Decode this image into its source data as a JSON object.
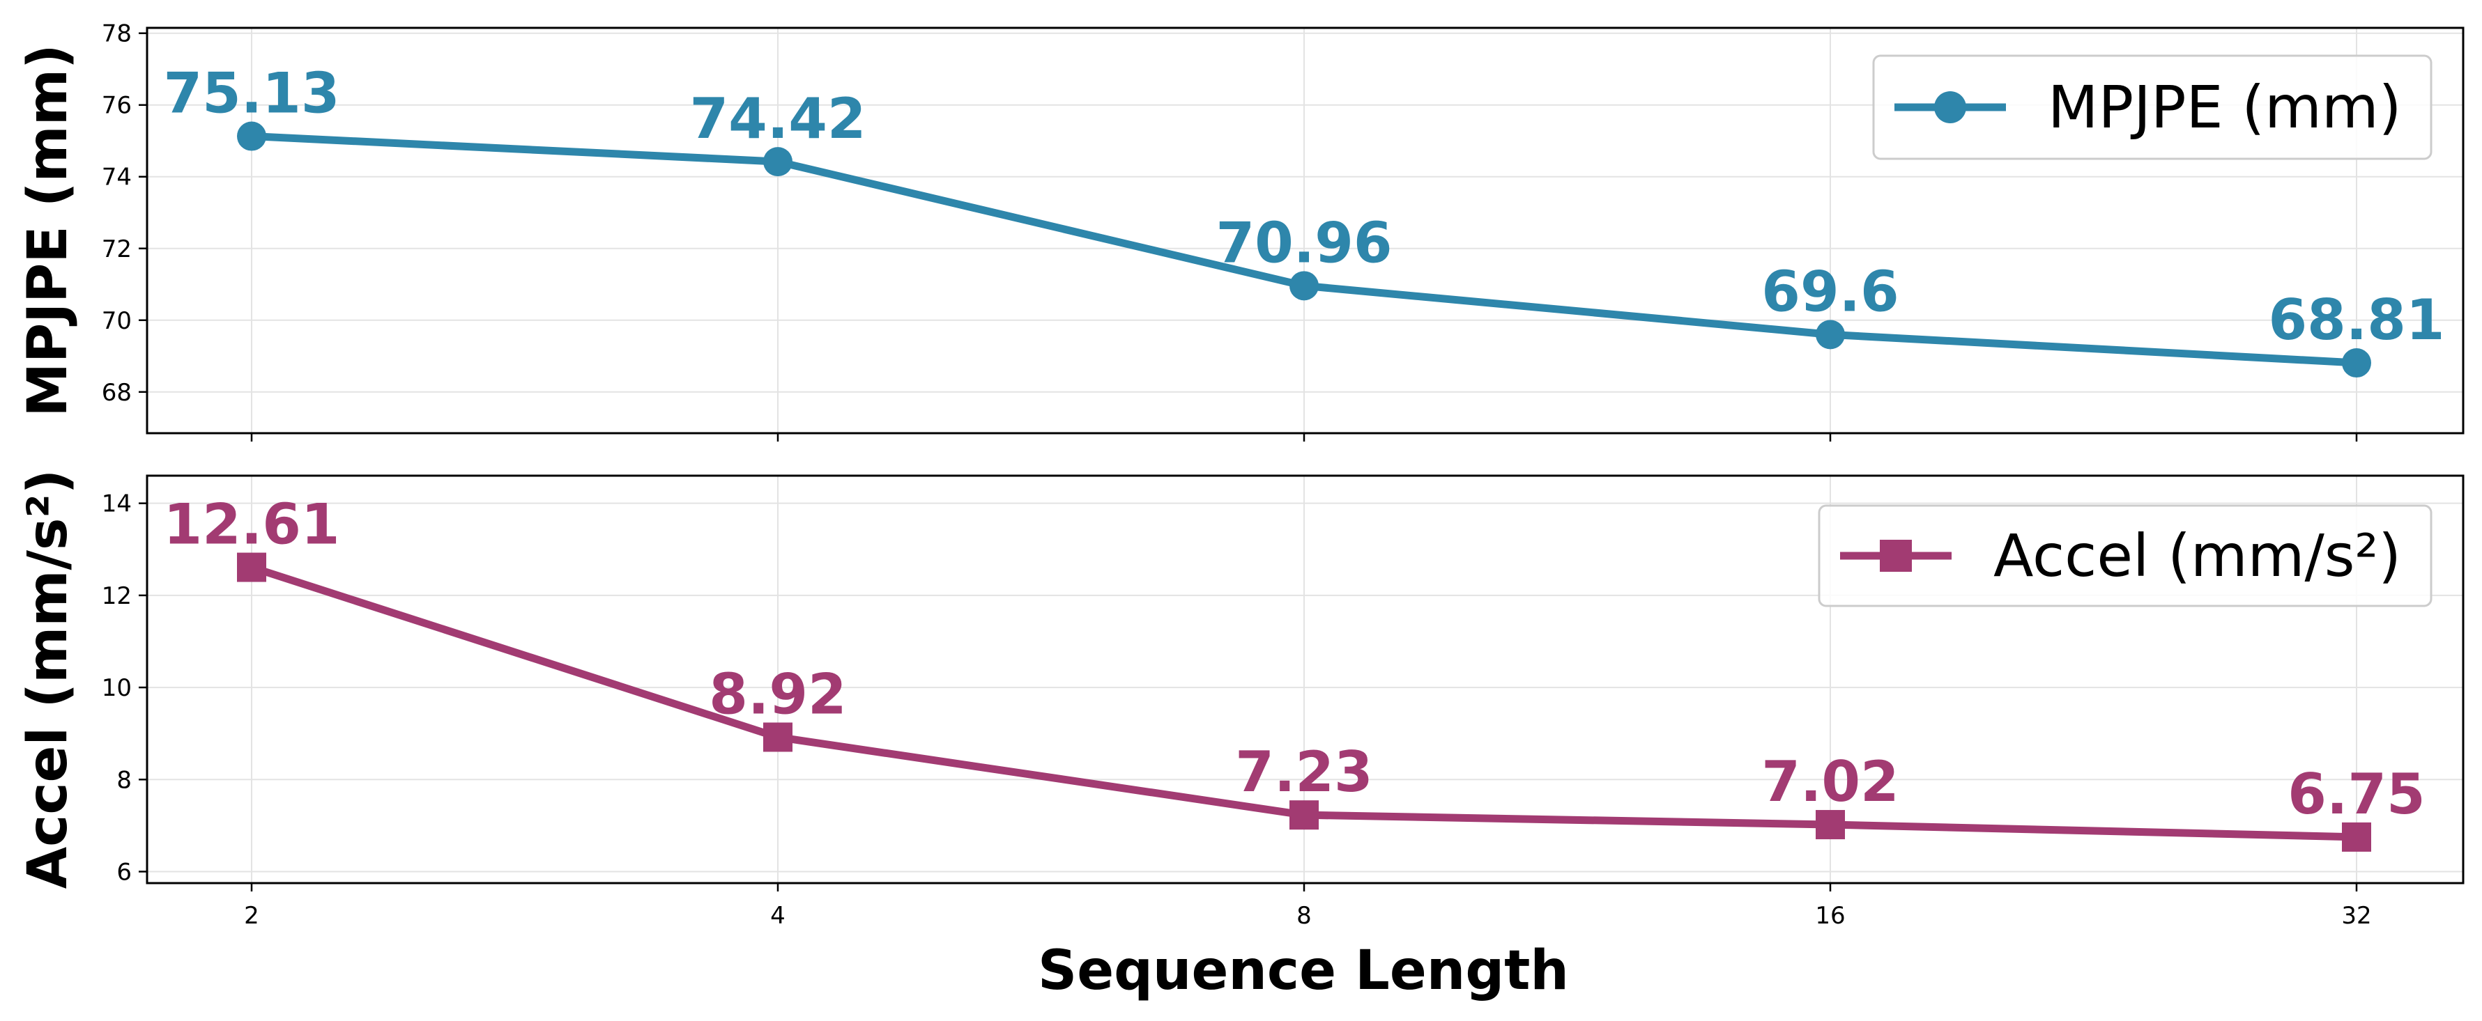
{
  "chart_data": [
    {
      "type": "line",
      "x": [
        "2",
        "4",
        "8",
        "16",
        "32"
      ],
      "series": [
        {
          "name": "MPJPE (mm)",
          "values": [
            75.13,
            74.42,
            70.96,
            69.6,
            68.81
          ],
          "color": "#2e86ab",
          "marker": "circle"
        }
      ],
      "data_labels": [
        "75.13",
        "74.42",
        "70.96",
        "69.6",
        "68.81"
      ],
      "ylabel": "MPJPE (mm)",
      "ylim": [
        66.85,
        78.15
      ],
      "yticks": [
        "68",
        "70",
        "72",
        "74",
        "76",
        "78"
      ],
      "grid": true,
      "legend": "top-right"
    },
    {
      "type": "line",
      "x": [
        "2",
        "4",
        "8",
        "16",
        "32"
      ],
      "series": [
        {
          "name": "Accel (mm/s²)",
          "values": [
            12.61,
            8.92,
            7.23,
            7.02,
            6.75
          ],
          "color": "#a23b72",
          "marker": "square"
        }
      ],
      "data_labels": [
        "12.61",
        "8.92",
        "7.23",
        "7.02",
        "6.75"
      ],
      "ylabel": "Accel (mm/s²)",
      "ylim": [
        5.75,
        14.6
      ],
      "yticks": [
        "6",
        "8",
        "10",
        "12",
        "14"
      ],
      "xlabel": "Sequence Length",
      "xticks": [
        "2",
        "4",
        "8",
        "16",
        "32"
      ],
      "grid": true,
      "legend": "top-right"
    }
  ]
}
